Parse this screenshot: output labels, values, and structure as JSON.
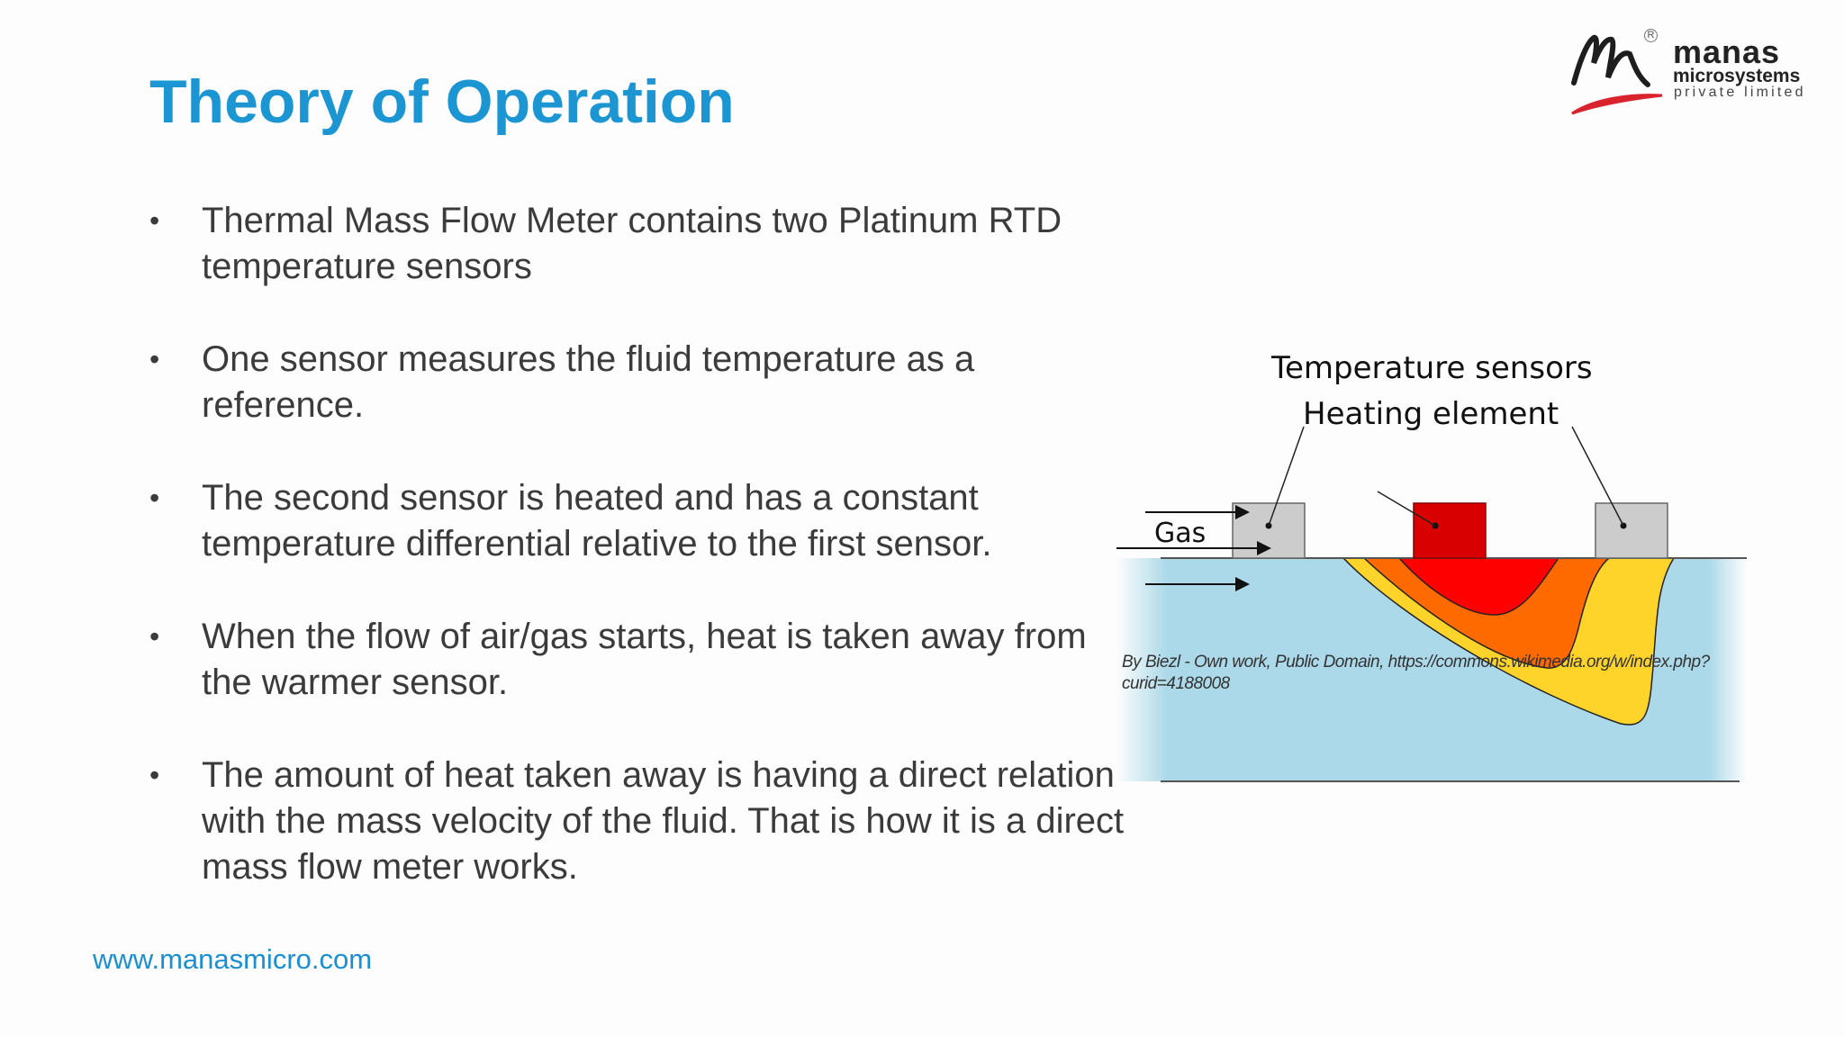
{
  "slide": {
    "title": "Theory of Operation",
    "bullets": [
      "Thermal Mass Flow Meter contains two Platinum RTD temperature sensors",
      "One sensor measures the fluid temperature as a reference.",
      "The second sensor is heated and has a constant temperature differential relative to the first sensor.",
      "When the flow of air/gas starts, heat is taken away from the warmer sensor.",
      "The amount of heat taken away is having a direct relation with the mass velocity of the fluid. That is how it is a direct mass flow meter works."
    ],
    "bullet_glyph": "•",
    "footer_url": "www.manasmicro.com"
  },
  "logo": {
    "name": "manas",
    "subtitle": "microsystems",
    "tagline": "private limited",
    "registered": "R"
  },
  "diagram": {
    "label_sensors": "Temperature sensors",
    "label_heater": "Heating element",
    "label_gas": "Gas",
    "caption": "By Biezl - Own work, Public Domain, https://commons.wikimedia.org/w/index.php?curid=4188008",
    "colors": {
      "fluid": "#acd9e9",
      "sensor": "#cccccc",
      "heater": "#d80000",
      "hot": "#ff0000",
      "warm": "#ff6a00",
      "mild": "#ffd42a"
    }
  },
  "theme": {
    "accent": "#1b96d3",
    "text": "#3b3b3b"
  }
}
